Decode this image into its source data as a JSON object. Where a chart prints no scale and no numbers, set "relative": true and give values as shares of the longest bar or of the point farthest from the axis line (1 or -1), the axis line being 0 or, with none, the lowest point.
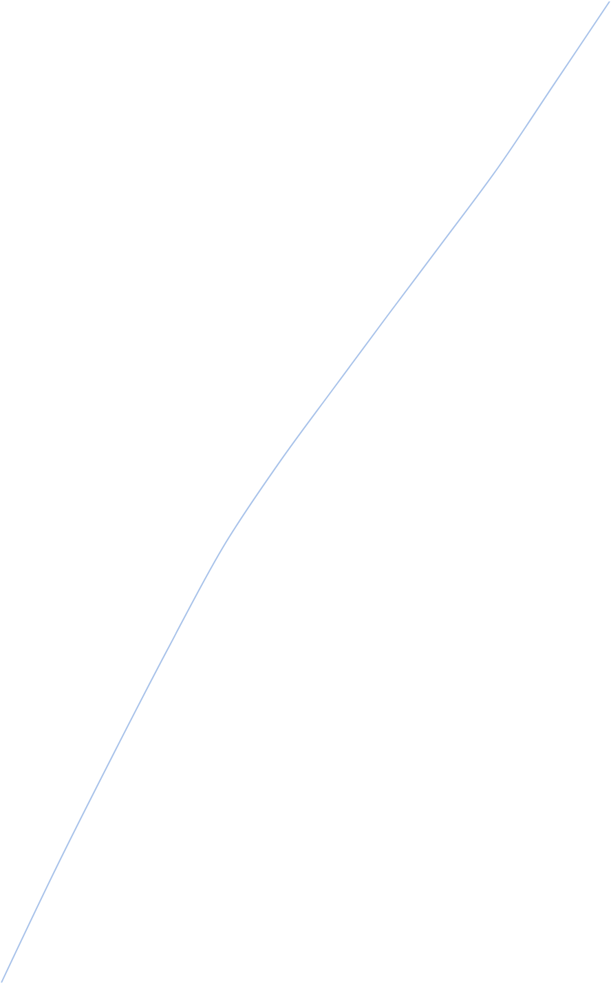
{
  "chart_data": {
    "type": "line",
    "relative": true,
    "color": "#a9c3ea",
    "categories": [
      null,
      null,
      null,
      null,
      null,
      null,
      null,
      null,
      null,
      null,
      null,
      null
    ],
    "values": [
      0,
      0.118,
      0.23,
      0.339,
      0.443,
      0.528,
      0.605,
      0.681,
      0.756,
      0.832,
      0.916,
      1
    ]
  }
}
